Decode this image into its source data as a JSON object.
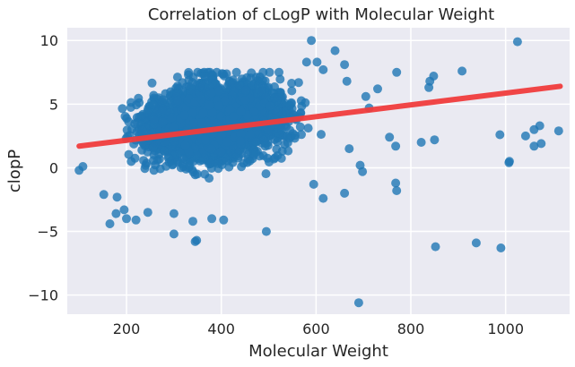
{
  "chart_data": {
    "type": "scatter",
    "title": "Correlation of cLogP with Molecular Weight",
    "xlabel": "Molecular Weight",
    "ylabel": "clopP",
    "xlim": [
      75,
      1135
    ],
    "ylim": [
      -11.5,
      11
    ],
    "xticks": [
      200,
      400,
      600,
      800,
      1000
    ],
    "yticks": [
      -10,
      -5,
      0,
      5,
      10
    ],
    "grid": true,
    "colors": {
      "background": "#eaeaf2",
      "grid": "#ffffff",
      "points": "#1f77b4",
      "regression": "#f03c3c"
    },
    "regression": {
      "x": [
        100,
        1115
      ],
      "y": [
        1.7,
        6.4
      ]
    },
    "main_cloud": {
      "description_mw_range": [
        110,
        620
      ],
      "clogp_range": [
        -4.5,
        7.5
      ],
      "center": [
        390,
        2.8
      ],
      "approx_point_count": 3000
    },
    "points": [
      [
        590,
        10.0
      ],
      [
        1025,
        9.9
      ],
      [
        640,
        9.2
      ],
      [
        580,
        8.3
      ],
      [
        602,
        8.3
      ],
      [
        660,
        8.1
      ],
      [
        615,
        7.7
      ],
      [
        770,
        7.5
      ],
      [
        908,
        7.6
      ],
      [
        848,
        7.2
      ],
      [
        365,
        7.2
      ],
      [
        665,
        6.8
      ],
      [
        730,
        6.2
      ],
      [
        840,
        6.8
      ],
      [
        838,
        6.3
      ],
      [
        705,
        5.6
      ],
      [
        712,
        4.7
      ],
      [
        1072,
        3.3
      ],
      [
        1060,
        3.0
      ],
      [
        1112,
        2.9
      ],
      [
        988,
        2.6
      ],
      [
        1042,
        2.5
      ],
      [
        755,
        2.4
      ],
      [
        768,
        1.7
      ],
      [
        822,
        2.0
      ],
      [
        850,
        2.2
      ],
      [
        670,
        1.5
      ],
      [
        1075,
        1.9
      ],
      [
        1060,
        1.7
      ],
      [
        1007,
        0.4
      ],
      [
        1008,
        0.5
      ],
      [
        693,
        0.2
      ],
      [
        698,
        -0.3
      ],
      [
        100,
        -0.2
      ],
      [
        108,
        0.1
      ],
      [
        768,
        -1.2
      ],
      [
        770,
        -1.8
      ],
      [
        595,
        -1.3
      ],
      [
        660,
        -2.0
      ],
      [
        615,
        -2.4
      ],
      [
        152,
        -2.1
      ],
      [
        180,
        -2.3
      ],
      [
        165,
        -4.4
      ],
      [
        178,
        -3.6
      ],
      [
        195,
        -3.3
      ],
      [
        200,
        -4.0
      ],
      [
        220,
        -4.1
      ],
      [
        245,
        -3.5
      ],
      [
        300,
        -3.6
      ],
      [
        340,
        -4.2
      ],
      [
        380,
        -4.0
      ],
      [
        405,
        -4.1
      ],
      [
        300,
        -5.2
      ],
      [
        345,
        -5.8
      ],
      [
        348,
        -5.7
      ],
      [
        495,
        -5.0
      ],
      [
        852,
        -6.2
      ],
      [
        938,
        -5.9
      ],
      [
        990,
        -6.3
      ],
      [
        690,
        -10.6
      ]
    ]
  }
}
